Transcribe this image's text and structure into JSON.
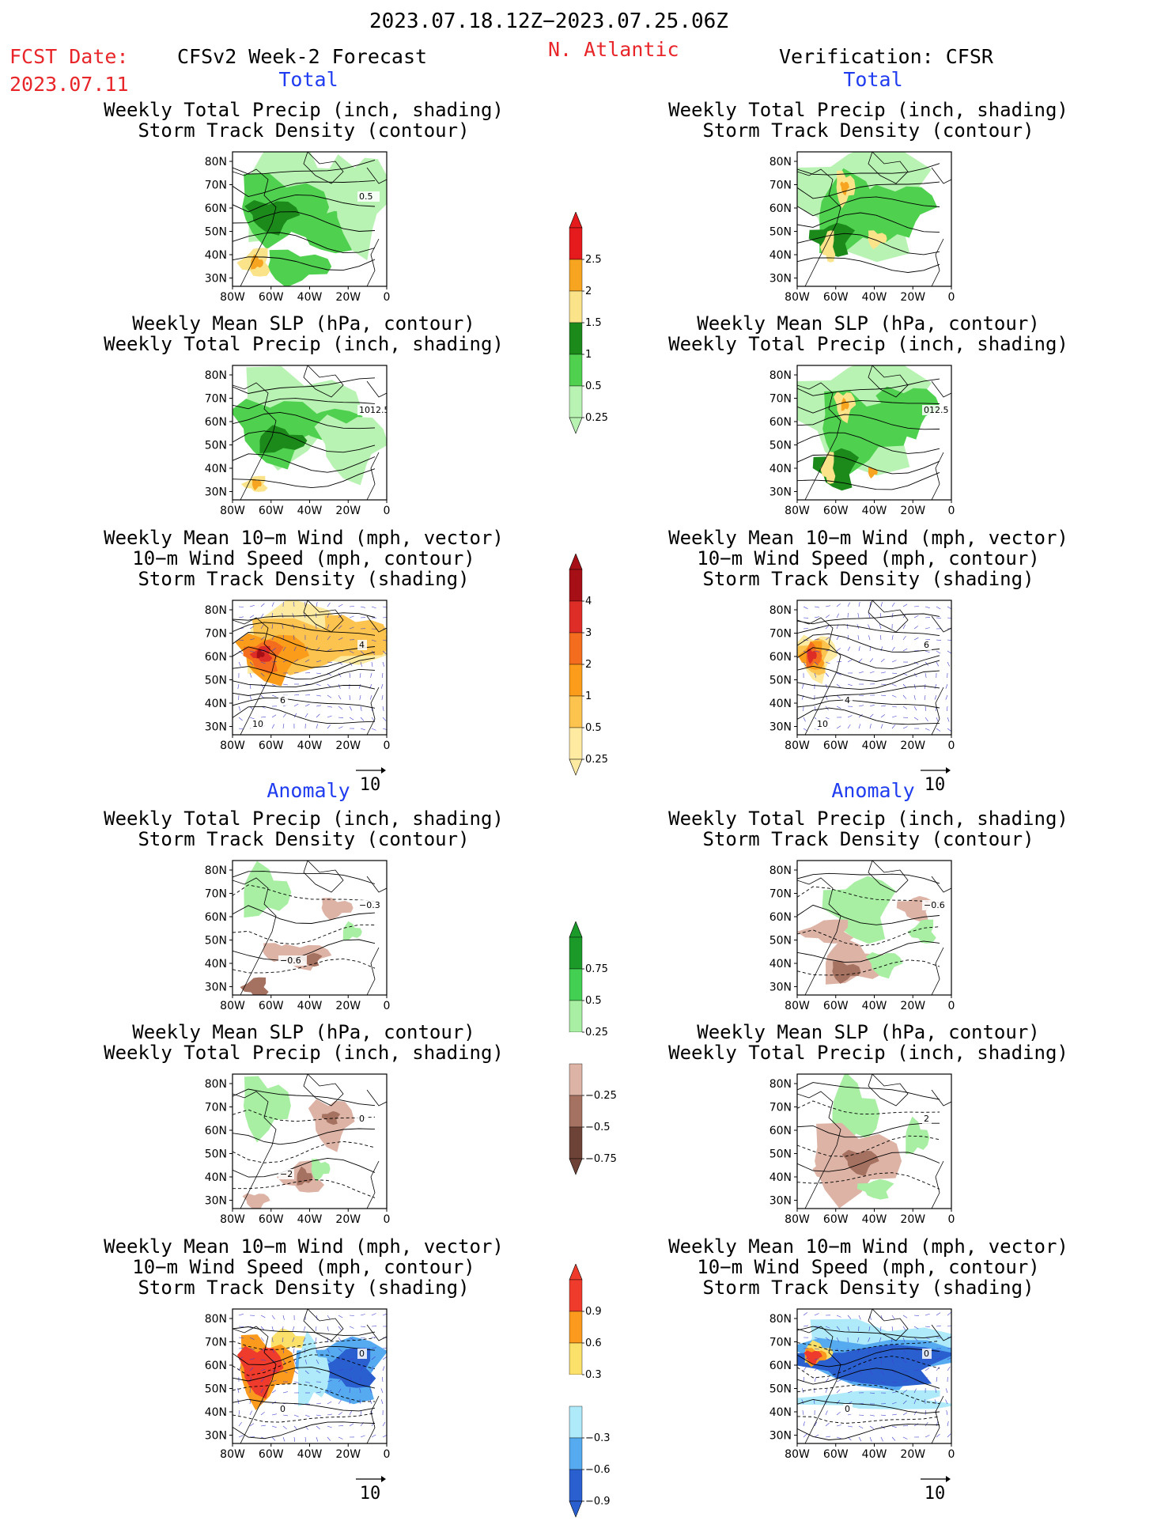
{
  "header": {
    "period": "2023.07.18.12Z−2023.07.25.06Z",
    "region": "N. Atlantic",
    "fcst_date_label": "FCST Date:",
    "fcst_date": "2023.07.11",
    "model_label": "CFSv2 Week-2 Forecast",
    "verification_label": "Verification: CFSR"
  },
  "sections": {
    "total": "Total",
    "anomaly": "Anomaly"
  },
  "axes": {
    "lat_labels": [
      "80N",
      "70N",
      "60N",
      "50N",
      "40N",
      "30N"
    ],
    "lon_labels": [
      "80W",
      "60W",
      "40W",
      "20W",
      "0"
    ],
    "vector_ref": "10"
  },
  "titles": {
    "precip_storm": [
      "Weekly Total Precip (inch, shading)",
      "Storm Track Density (contour)"
    ],
    "slp_precip": [
      "Weekly Mean SLP (hPa, contour)",
      "Weekly Total Precip (inch, shading)"
    ],
    "wind_storm": [
      "Weekly Mean 10−m Wind (mph, vector)",
      "10−m Wind Speed (mph, contour)",
      "Storm Track Density (shading)"
    ]
  },
  "contour_labels": {
    "fc_total_precip": "0.5",
    "fc_total_slp": "1012.5",
    "ver_total_slp": "012.5",
    "fc_total_wind_a": "4",
    "fc_total_wind_b": "6",
    "fc_total_wind_c": "10",
    "ver_total_wind_a": "6",
    "ver_total_wind_b": "4",
    "ver_total_wind_c": "10",
    "fc_anom_precip_a": "−0.3",
    "fc_anom_precip_b": "−0.6",
    "ver_anom_precip": "−0.6",
    "fc_anom_slp_a": "0",
    "fc_anom_slp_b": "−2",
    "ver_anom_slp": "2",
    "fc_anom_wind_a": "0",
    "fc_anom_wind_b": "0",
    "ver_anom_wind_a": "0",
    "ver_anom_wind_b": "0"
  },
  "colorbars": {
    "precip_total": {
      "labels": [
        "2.5",
        "2",
        "1.5",
        "1",
        "0.5",
        "0.25"
      ],
      "colors": [
        "#e41a1c",
        "#f7a520",
        "#fbe38a",
        "#1b8a1b",
        "#4fd14f",
        "#b9f3b3"
      ]
    },
    "storm_total": {
      "labels": [
        "4",
        "3",
        "2",
        "1",
        "0.5",
        "0.25"
      ],
      "colors": [
        "#a50f15",
        "#de2d26",
        "#f46d1e",
        "#fb9d1a",
        "#fdc34f",
        "#feeaa0"
      ]
    },
    "precip_anom": {
      "labels": [
        "0.75",
        "0.5",
        "0.25",
        "−0.25",
        "−0.5",
        "−0.75"
      ],
      "colors": [
        "#1b9a2a",
        "#42cf52",
        "#a8efa3",
        "#ffffff",
        "#ddb3a6",
        "#a57160",
        "#6e4337"
      ]
    },
    "storm_anom": {
      "labels": [
        "0.9",
        "0.6",
        "0.3",
        "−0.3",
        "−0.6",
        "−0.9"
      ],
      "colors": [
        "#ef3b2c",
        "#fb9a1c",
        "#fbe06a",
        "#ffffff",
        "#aeeafa",
        "#55aaf0",
        "#2a5fd0"
      ]
    }
  }
}
